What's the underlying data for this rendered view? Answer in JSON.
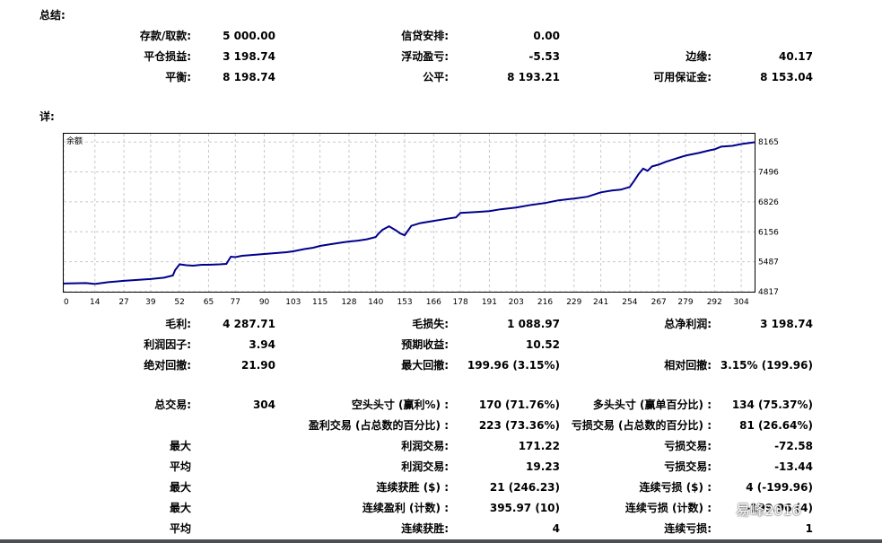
{
  "summary": {
    "title": "总结:",
    "rows": [
      [
        {
          "label": "存款/取款:",
          "value": "5 000.00"
        },
        {
          "label": "信贷安排:",
          "value": "0.00"
        },
        {
          "label": "",
          "value": ""
        }
      ],
      [
        {
          "label": "平仓损益:",
          "value": "3 198.74"
        },
        {
          "label": "浮动盈亏:",
          "value": "-5.53"
        },
        {
          "label": "边缘:",
          "value": "40.17"
        }
      ],
      [
        {
          "label": "平衡:",
          "value": "8 198.74"
        },
        {
          "label": "公平:",
          "value": "8 193.21"
        },
        {
          "label": "可用保证金:",
          "value": "8 153.04"
        }
      ]
    ]
  },
  "details": {
    "title": "详:",
    "stats": [
      [
        {
          "label": "毛利:",
          "value": "4 287.71"
        },
        {
          "label": "毛损失:",
          "value": "1 088.97"
        },
        {
          "label": "总净利润:",
          "value": "3 198.74"
        }
      ],
      [
        {
          "label": "利润因子:",
          "value": "3.94"
        },
        {
          "label": "预期收益:",
          "value": "10.52"
        },
        {
          "label": "",
          "value": ""
        }
      ],
      [
        {
          "label": "绝对回撤:",
          "value": "21.90"
        },
        {
          "label": "最大回撤:",
          "value": "199.96 (3.15%)"
        },
        {
          "label": "相对回撤:",
          "value": "3.15% (199.96)"
        }
      ]
    ],
    "trades": [
      [
        {
          "label": "总交易:",
          "value": "304"
        },
        {
          "label": "空头头寸 (赢利%) :",
          "value": "170 (71.76%)"
        },
        {
          "label": "多头头寸 (赢单百分比) :",
          "value": "134 (75.37%)"
        }
      ],
      [
        {
          "label": "",
          "value": ""
        },
        {
          "label": "盈利交易 (占总数的百分比) :",
          "value": "223 (73.36%)"
        },
        {
          "label": "亏损交易 (占总数的百分比) :",
          "value": "81 (26.64%)"
        }
      ],
      [
        {
          "label": "最大",
          "value": ""
        },
        {
          "label": "利润交易:",
          "value": "171.22"
        },
        {
          "label": "亏损交易:",
          "value": "-72.58"
        }
      ],
      [
        {
          "label": "平均",
          "value": ""
        },
        {
          "label": "利润交易:",
          "value": "19.23"
        },
        {
          "label": "亏损交易:",
          "value": "-13.44"
        }
      ],
      [
        {
          "label": "最大",
          "value": ""
        },
        {
          "label": "连续获胜 ($) :",
          "value": "21 (246.23)"
        },
        {
          "label": "连续亏损 ($) :",
          "value": "4 (-199.96)"
        }
      ],
      [
        {
          "label": "最大",
          "value": ""
        },
        {
          "label": "连续盈利 (计数) :",
          "value": "395.97 (10)"
        },
        {
          "label": "连续亏损 (计数) :",
          "value": "-199.96 (4)"
        }
      ],
      [
        {
          "label": "平均",
          "value": ""
        },
        {
          "label": "连续获胜:",
          "value": "4",
          "extra": ""
        },
        {
          "label": "连续亏损:",
          "value": "1"
        }
      ]
    ]
  },
  "watermark": "易峰2016",
  "chart_data": {
    "type": "line",
    "title": "余额",
    "xlabel": "",
    "ylabel": "",
    "x_ticks": [
      0,
      14,
      27,
      39,
      52,
      65,
      77,
      90,
      103,
      115,
      128,
      140,
      153,
      166,
      178,
      191,
      203,
      216,
      229,
      241,
      254,
      267,
      279,
      292,
      304
    ],
    "y_ticks": [
      4817,
      5487,
      6156,
      6826,
      7496,
      8165
    ],
    "xlim": [
      0,
      310
    ],
    "ylim": [
      4817,
      8350
    ],
    "grid": true,
    "line_color": "#00008b",
    "series": [
      {
        "name": "",
        "x": [
          0,
          10,
          14,
          20,
          27,
          33,
          39,
          45,
          49,
          50,
          52,
          55,
          58,
          62,
          65,
          70,
          73,
          75,
          77,
          80,
          85,
          90,
          95,
          100,
          103,
          108,
          112,
          115,
          120,
          125,
          128,
          132,
          136,
          140,
          141,
          143,
          146,
          149,
          151,
          153,
          156,
          160,
          166,
          172,
          176,
          178,
          185,
          191,
          196,
          203,
          210,
          216,
          222,
          229,
          235,
          241,
          246,
          250,
          254,
          256,
          258,
          260,
          262,
          264,
          267,
          270,
          275,
          279,
          285,
          290,
          292,
          295,
          300,
          304,
          310
        ],
        "y": [
          5000,
          5010,
          4990,
          5030,
          5060,
          5080,
          5100,
          5130,
          5180,
          5300,
          5430,
          5410,
          5400,
          5420,
          5420,
          5430,
          5440,
          5600,
          5590,
          5620,
          5640,
          5660,
          5680,
          5700,
          5720,
          5770,
          5800,
          5840,
          5880,
          5920,
          5940,
          5960,
          5990,
          6040,
          6100,
          6200,
          6280,
          6190,
          6120,
          6080,
          6290,
          6350,
          6400,
          6450,
          6480,
          6580,
          6600,
          6620,
          6660,
          6700,
          6760,
          6800,
          6860,
          6900,
          6940,
          7040,
          7080,
          7100,
          7160,
          7300,
          7450,
          7570,
          7520,
          7620,
          7660,
          7720,
          7800,
          7860,
          7920,
          7980,
          8000,
          8060,
          8080,
          8120,
          8160
        ]
      }
    ]
  }
}
